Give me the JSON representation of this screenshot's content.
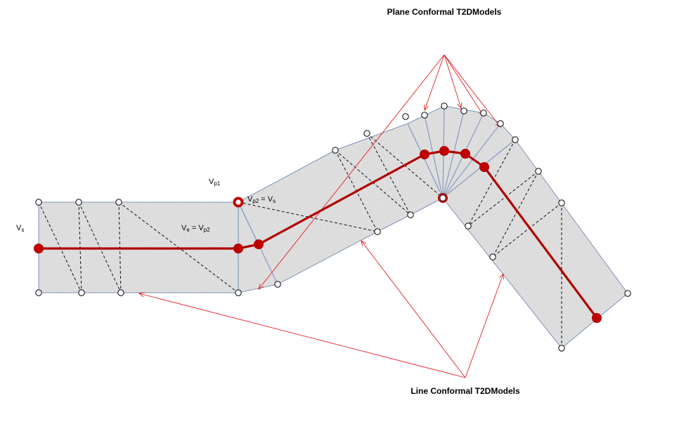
{
  "callouts": {
    "plane": "Plane Conformal T2DModels",
    "line": "Line Conformal T2DModels"
  },
  "labels": {
    "vs_main": "V",
    "vs_main_sub": "s",
    "ve": "V",
    "ve_sub": "e",
    "ve_eq": " = V",
    "ve_eq_sub": "p2",
    "vp1": "V",
    "vp1_sub": "p1",
    "vp2": "V",
    "vp2_sub": "p2",
    "vp2_eq": " = V",
    "vp2_eq_sub": "s"
  },
  "colors": {
    "path": "#b00000",
    "node": "#c00000",
    "callout_arrow": "#e31e24",
    "region_edge": "#7f93b5",
    "fan_edge": "#8ca0c4"
  }
}
